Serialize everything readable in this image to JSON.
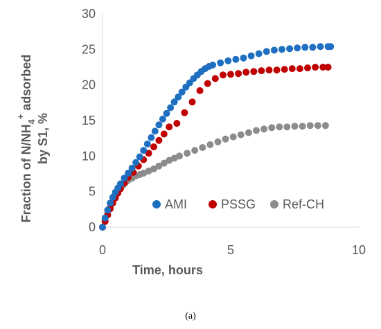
{
  "chart_data": {
    "type": "scatter",
    "xlabel": "Time, hours",
    "ylabel": {
      "line1_prefix": "Fraction of  N/NH",
      "line1_sub": "4",
      "line1_sup": "+",
      "line1_suffix": " adsorbed",
      "line2": "by S1, %"
    },
    "xlim": [
      0,
      10
    ],
    "ylim": [
      0,
      30
    ],
    "x_ticks": [
      "0",
      "5",
      "10"
    ],
    "y_ticks": [
      "0",
      "5",
      "10",
      "15",
      "20",
      "25",
      "30"
    ],
    "grid": false,
    "legend_position": "bottom-right",
    "caption": "(a)",
    "colors": {
      "axis": "#d9d9d9",
      "text": "#595959"
    },
    "series": [
      {
        "name": "AMI",
        "color": "#1f6fc1",
        "x": [
          0,
          0.1,
          0.2,
          0.3,
          0.4,
          0.5,
          0.6,
          0.7,
          0.85,
          1.0,
          1.15,
          1.3,
          1.45,
          1.6,
          1.75,
          1.9,
          2.05,
          2.2,
          2.35,
          2.5,
          2.65,
          2.8,
          2.95,
          3.1,
          3.25,
          3.4,
          3.55,
          3.7,
          3.85,
          4.0,
          4.15,
          4.3,
          4.6,
          4.9,
          5.2,
          5.5,
          5.8,
          6.1,
          6.4,
          6.7,
          7.0,
          7.3,
          7.6,
          7.9,
          8.2,
          8.5,
          8.8,
          8.9
        ],
        "y": [
          0,
          1.3,
          2.4,
          3.4,
          4.2,
          4.9,
          5.5,
          6.1,
          6.9,
          7.6,
          8.3,
          9.1,
          9.9,
          10.8,
          11.7,
          12.6,
          13.5,
          14.4,
          15.2,
          16.0,
          16.8,
          17.6,
          18.3,
          19.0,
          19.7,
          20.3,
          20.9,
          21.4,
          21.9,
          22.3,
          22.6,
          22.8,
          23.1,
          23.4,
          23.6,
          23.8,
          24.1,
          24.4,
          24.7,
          24.9,
          25.0,
          25.1,
          25.2,
          25.3,
          25.3,
          25.4,
          25.4,
          25.4
        ]
      },
      {
        "name": "PSSG",
        "color": "#c00000",
        "x": [
          0,
          0.1,
          0.2,
          0.3,
          0.4,
          0.5,
          0.6,
          0.7,
          0.85,
          1.0,
          1.2,
          1.4,
          1.6,
          1.8,
          2.0,
          2.2,
          2.4,
          2.6,
          2.9,
          3.2,
          3.5,
          3.8,
          4.1,
          4.4,
          4.7,
          5.0,
          5.3,
          5.6,
          5.9,
          6.2,
          6.5,
          6.8,
          7.1,
          7.4,
          7.7,
          8.0,
          8.3,
          8.6,
          8.8
        ],
        "y": [
          0,
          0.8,
          1.7,
          2.6,
          3.4,
          4.1,
          4.8,
          5.4,
          6.2,
          7.0,
          7.7,
          8.6,
          9.5,
          10.4,
          11.3,
          12.2,
          13.1,
          14.1,
          14.6,
          16.1,
          17.6,
          19.2,
          20.2,
          20.9,
          21.4,
          21.5,
          21.6,
          21.8,
          21.9,
          22.0,
          22.1,
          22.1,
          22.2,
          22.3,
          22.3,
          22.4,
          22.5,
          22.5,
          22.5
        ]
      },
      {
        "name": "Ref-CH",
        "color": "#8c8c8c",
        "x": [
          0,
          0.1,
          0.2,
          0.3,
          0.4,
          0.5,
          0.6,
          0.7,
          0.8,
          0.9,
          1.0,
          1.15,
          1.3,
          1.45,
          1.6,
          1.8,
          2.0,
          2.2,
          2.4,
          2.6,
          2.8,
          3.0,
          3.3,
          3.6,
          3.9,
          4.2,
          4.5,
          4.8,
          5.1,
          5.4,
          5.7,
          6.0,
          6.3,
          6.6,
          6.9,
          7.2,
          7.5,
          7.8,
          8.1,
          8.4,
          8.7
        ],
        "y": [
          0,
          0.9,
          1.9,
          2.8,
          3.6,
          4.3,
          4.9,
          5.4,
          5.9,
          6.3,
          6.6,
          6.9,
          7.2,
          7.4,
          7.6,
          7.9,
          8.2,
          8.6,
          9.0,
          9.4,
          9.7,
          10.0,
          10.4,
          10.8,
          11.2,
          11.6,
          12.0,
          12.4,
          12.7,
          13.0,
          13.3,
          13.6,
          13.8,
          14.0,
          14.1,
          14.1,
          14.2,
          14.2,
          14.3,
          14.3,
          14.3
        ]
      }
    ]
  }
}
